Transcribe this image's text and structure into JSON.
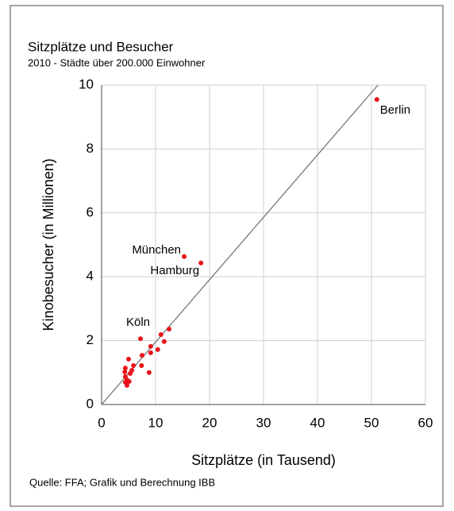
{
  "chart_data": {
    "type": "scatter",
    "title": "Sitzplätze und Besucher",
    "subtitle": "2010 - Städte über 200.000 Einwohner",
    "x_label": "Sitzplätze (in Tausend)",
    "y_label": "Kinobesucher (in Millionen)",
    "source": "Quelle: FFA; Grafik und Berechnung IBB",
    "color": "#e8141b",
    "x": [
      51,
      15.3,
      18.4,
      12.5,
      11.0,
      11.6,
      7.2,
      10.4,
      9.1,
      7.5,
      9.1,
      5.0,
      5.9,
      7.4,
      4.4,
      5.6,
      4.3,
      8.8,
      5.3,
      4.4,
      4.7,
      5.1,
      4.4,
      4.7
    ],
    "y": [
      9.55,
      4.63,
      4.43,
      2.36,
      2.19,
      1.97,
      2.06,
      1.72,
      1.82,
      1.54,
      1.62,
      1.42,
      1.22,
      1.22,
      1.14,
      1.07,
      1.02,
      1.0,
      0.97,
      0.87,
      0.77,
      0.72,
      0.7,
      0.6
    ],
    "point_labels": [
      "Berlin",
      "München",
      "Hamburg",
      "Köln",
      null,
      null,
      null,
      null,
      null,
      null,
      null,
      null,
      null,
      null,
      null,
      null,
      null,
      null,
      null,
      null,
      null,
      null,
      null,
      null
    ],
    "trendline": {
      "x": [
        0,
        51.2
      ],
      "y": [
        0,
        10
      ],
      "color": "#777777"
    },
    "xlim": [
      0,
      60
    ],
    "xticks": [
      0,
      10,
      20,
      30,
      40,
      50,
      60
    ],
    "ylim": [
      0,
      10
    ],
    "yticks": [
      0,
      2,
      4,
      6,
      8,
      10
    ],
    "grid": true
  }
}
